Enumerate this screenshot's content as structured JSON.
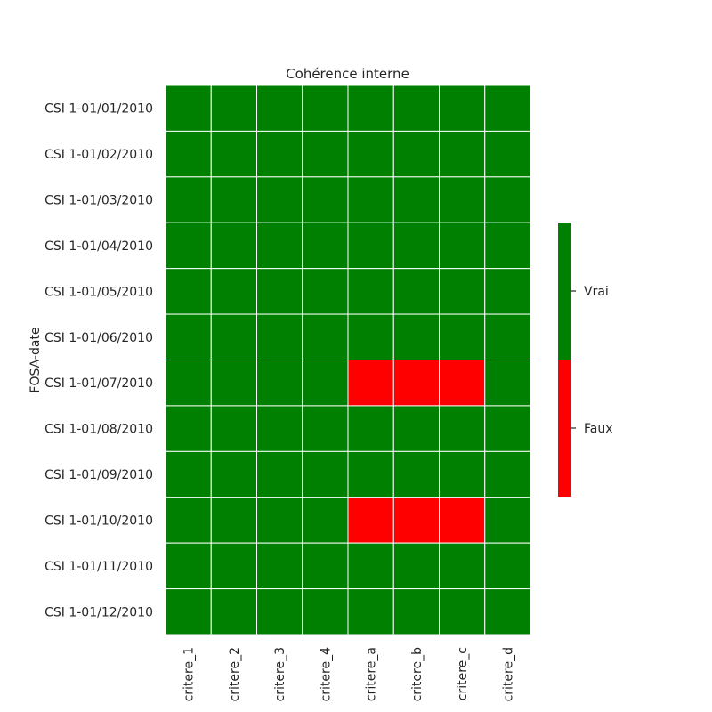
{
  "chart_data": {
    "type": "heatmap",
    "title": "Cohérence interne",
    "xlabel": "",
    "ylabel": "FOSA-date",
    "columns": [
      "critere_1",
      "critere_2",
      "critere_3",
      "critere_4",
      "critere_a",
      "critere_b",
      "critere_c",
      "critere_d"
    ],
    "rows": [
      "CSI 1-01/01/2010",
      "CSI 1-01/02/2010",
      "CSI 1-01/03/2010",
      "CSI 1-01/04/2010",
      "CSI 1-01/05/2010",
      "CSI 1-01/06/2010",
      "CSI 1-01/07/2010",
      "CSI 1-01/08/2010",
      "CSI 1-01/09/2010",
      "CSI 1-01/10/2010",
      "CSI 1-01/11/2010",
      "CSI 1-01/12/2010"
    ],
    "values": [
      [
        true,
        true,
        true,
        true,
        true,
        true,
        true,
        true
      ],
      [
        true,
        true,
        true,
        true,
        true,
        true,
        true,
        true
      ],
      [
        true,
        true,
        true,
        true,
        true,
        true,
        true,
        true
      ],
      [
        true,
        true,
        true,
        true,
        true,
        true,
        true,
        true
      ],
      [
        true,
        true,
        true,
        true,
        true,
        true,
        true,
        true
      ],
      [
        true,
        true,
        true,
        true,
        true,
        true,
        true,
        true
      ],
      [
        true,
        true,
        true,
        true,
        false,
        false,
        false,
        true
      ],
      [
        true,
        true,
        true,
        true,
        true,
        true,
        true,
        true
      ],
      [
        true,
        true,
        true,
        true,
        true,
        true,
        true,
        true
      ],
      [
        true,
        true,
        true,
        true,
        false,
        false,
        false,
        true
      ],
      [
        true,
        true,
        true,
        true,
        true,
        true,
        true,
        true
      ],
      [
        true,
        true,
        true,
        true,
        true,
        true,
        true,
        true
      ]
    ],
    "colors": {
      "true": "#008000",
      "false": "#ff0000",
      "cell_border": "#ffffff"
    },
    "colorbar": {
      "placement": "right",
      "labels": {
        "true": "Vrai",
        "false": "Faux"
      }
    },
    "grid": false
  }
}
